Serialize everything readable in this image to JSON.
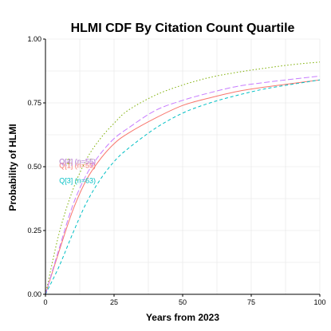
{
  "chart_data": {
    "type": "line",
    "title": "HLMI CDF By Citation Count Quartile",
    "xlabel": "Years from 2023",
    "ylabel": "Probability of HLMI",
    "xlim": [
      0,
      100
    ],
    "ylim": [
      0,
      1
    ],
    "x_ticks": [
      "0",
      "25",
      "50",
      "75",
      "100"
    ],
    "y_ticks": [
      "0.00",
      "0.25",
      "0.50",
      "0.75",
      "1.00"
    ],
    "grid": true,
    "legend": "inline labels at left",
    "x": [
      0,
      5,
      10,
      15,
      20,
      25,
      30,
      40,
      50,
      60,
      70,
      80,
      90,
      100
    ],
    "series": [
      {
        "name": "Q[1] (n=55)",
        "color": "#f8766d",
        "dash": "solid",
        "label_at": [
          5,
          0.505
        ],
        "values": [
          0,
          0.17,
          0.33,
          0.45,
          0.53,
          0.59,
          0.63,
          0.69,
          0.74,
          0.77,
          0.795,
          0.812,
          0.826,
          0.84
        ]
      },
      {
        "name": "Q[2] (n=55)",
        "color": "#7cae00",
        "dash": "dotted",
        "label_at": [
          5,
          0.52
        ],
        "values": [
          0,
          0.24,
          0.41,
          0.53,
          0.61,
          0.67,
          0.72,
          0.78,
          0.82,
          0.85,
          0.87,
          0.886,
          0.9,
          0.91
        ]
      },
      {
        "name": "Q[3] (n=63)",
        "color": "#00bfc4",
        "dash": "dashed",
        "label_at": [
          5,
          0.445
        ],
        "values": [
          0,
          0.11,
          0.24,
          0.36,
          0.45,
          0.52,
          0.57,
          0.65,
          0.71,
          0.75,
          0.78,
          0.805,
          0.823,
          0.84
        ]
      },
      {
        "name": "Q[4] (n=56)",
        "color": "#c77cff",
        "dash": "longdash",
        "label_at": [
          5,
          0.52
        ],
        "values": [
          0,
          0.18,
          0.35,
          0.47,
          0.55,
          0.61,
          0.65,
          0.72,
          0.76,
          0.79,
          0.815,
          0.83,
          0.843,
          0.855
        ]
      }
    ]
  }
}
